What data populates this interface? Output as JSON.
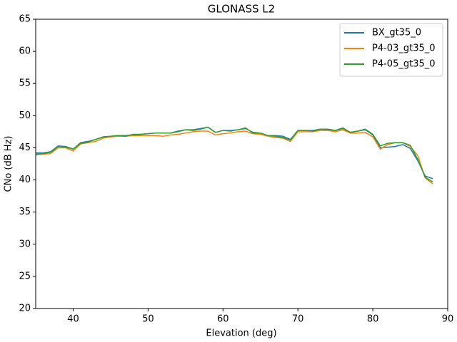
{
  "chart_data": {
    "type": "line",
    "title": "GLONASS L2",
    "xlabel": "Elevation (deg)",
    "ylabel": "CNo (dB Hz)",
    "x": [
      35,
      36,
      37,
      38,
      39,
      40,
      41,
      42,
      43,
      44,
      45,
      46,
      47,
      48,
      49,
      50,
      51,
      52,
      53,
      54,
      55,
      56,
      57,
      58,
      59,
      60,
      61,
      62,
      63,
      64,
      65,
      66,
      67,
      68,
      69,
      70,
      71,
      72,
      73,
      74,
      75,
      76,
      77,
      78,
      79,
      80,
      81,
      82,
      83,
      84,
      85,
      86,
      87,
      88
    ],
    "series": [
      {
        "name": "BX_gt35_0",
        "color": "#1f77b4",
        "values": [
          44.2,
          44.2,
          44.4,
          45.3,
          45.2,
          44.8,
          45.8,
          46.0,
          46.3,
          46.7,
          46.8,
          46.9,
          46.9,
          47.0,
          47.1,
          47.2,
          47.3,
          47.3,
          47.3,
          47.6,
          47.8,
          47.8,
          48.0,
          48.2,
          47.4,
          47.7,
          47.7,
          47.8,
          48.0,
          47.4,
          47.3,
          46.9,
          46.9,
          46.8,
          46.3,
          47.7,
          47.7,
          47.7,
          47.9,
          47.8,
          47.7,
          48.0,
          47.4,
          47.6,
          47.8,
          47.0,
          45.0,
          45.1,
          45.2,
          45.5,
          44.9,
          43.0,
          40.6,
          40.2
        ]
      },
      {
        "name": "P4-03_gt35_0",
        "color": "#ff7f0e",
        "values": [
          43.9,
          44.0,
          44.1,
          45.0,
          45.0,
          44.5,
          45.6,
          45.8,
          46.0,
          46.5,
          46.7,
          46.8,
          46.8,
          46.9,
          46.9,
          46.9,
          46.9,
          46.8,
          47.0,
          47.1,
          47.3,
          47.5,
          47.6,
          47.6,
          47.0,
          47.2,
          47.3,
          47.5,
          47.6,
          47.2,
          47.1,
          46.8,
          46.6,
          46.5,
          46.0,
          47.5,
          47.5,
          47.5,
          47.7,
          47.7,
          47.5,
          47.8,
          47.3,
          47.3,
          47.4,
          46.7,
          44.8,
          45.5,
          45.8,
          45.8,
          45.2,
          43.8,
          40.3,
          39.4
        ]
      },
      {
        "name": "P4-05_gt35_0",
        "color": "#2ca02c",
        "values": [
          44.0,
          44.1,
          44.3,
          45.2,
          45.1,
          44.8,
          45.7,
          45.9,
          46.3,
          46.7,
          46.8,
          46.9,
          46.8,
          47.1,
          47.1,
          47.2,
          47.3,
          47.3,
          47.3,
          47.5,
          47.8,
          47.7,
          47.9,
          48.2,
          47.4,
          47.7,
          47.6,
          47.8,
          48.1,
          47.3,
          47.3,
          46.9,
          46.8,
          46.6,
          46.2,
          47.7,
          47.7,
          47.6,
          47.9,
          47.9,
          47.7,
          48.1,
          47.4,
          47.6,
          47.9,
          47.1,
          45.3,
          45.7,
          45.8,
          45.8,
          45.4,
          43.2,
          40.4,
          39.7
        ]
      }
    ],
    "xlim": [
      35,
      90
    ],
    "xticks": [
      40,
      50,
      60,
      70,
      80,
      90
    ],
    "ylim": [
      20,
      65
    ],
    "yticks": [
      20,
      25,
      30,
      35,
      40,
      45,
      50,
      55,
      60,
      65
    ],
    "grid": false,
    "legend": "upper right"
  }
}
